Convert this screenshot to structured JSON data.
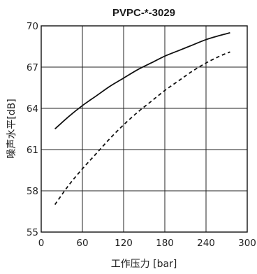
{
  "chart_data": {
    "type": "line",
    "title": "PVPC-*-3029",
    "xlabel": "工作压力 [bar]",
    "ylabel": "噪声水平[dB]",
    "xlim": [
      0,
      300
    ],
    "ylim": [
      55,
      70
    ],
    "xticks": [
      "0",
      "60",
      "120",
      "180",
      "240",
      "300"
    ],
    "yticks": [
      "55",
      "58",
      "61",
      "64",
      "67",
      "70"
    ],
    "grid": true,
    "legend": "none",
    "series": [
      {
        "style": "solid",
        "color": "#111111",
        "x": [
          20,
          40,
          60,
          80,
          100,
          120,
          140,
          160,
          180,
          200,
          220,
          240,
          260,
          275
        ],
        "y": [
          62.5,
          63.4,
          64.2,
          64.9,
          65.6,
          66.2,
          66.8,
          67.3,
          67.8,
          68.2,
          68.6,
          69.0,
          69.3,
          69.5
        ]
      },
      {
        "style": "dashed",
        "color": "#111111",
        "x": [
          20,
          40,
          60,
          80,
          100,
          120,
          140,
          160,
          180,
          200,
          220,
          240,
          260,
          275
        ],
        "y": [
          57.0,
          58.4,
          59.6,
          60.7,
          61.8,
          62.8,
          63.7,
          64.5,
          65.3,
          66.0,
          66.7,
          67.3,
          67.8,
          68.1
        ]
      }
    ]
  }
}
